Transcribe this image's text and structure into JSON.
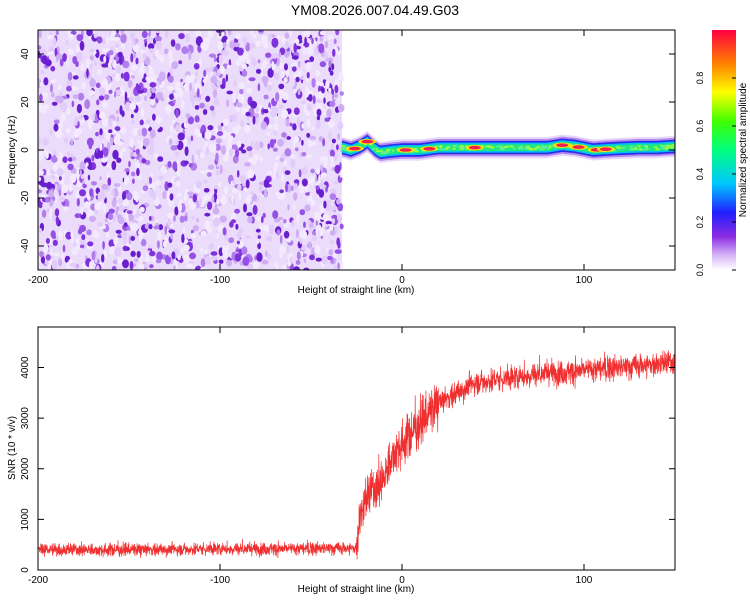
{
  "title": "YM08.2026.007.04.49.G03",
  "chart_data": [
    {
      "type": "heatmap",
      "xlabel": "Height of straight line (km)",
      "ylabel": "Frequency (Hz)",
      "xlim": [
        -200,
        150
      ],
      "ylim": [
        -50,
        50
      ],
      "xticks": [
        -200,
        -100,
        0,
        100
      ],
      "yticks": [
        -40,
        -20,
        0,
        20,
        40
      ],
      "noise_region_x": [
        -200,
        -33
      ],
      "signal_band": {
        "x_start": -33,
        "center_hz": [
          [
            -33,
            1.0
          ],
          [
            -28,
            0.0
          ],
          [
            -23,
            1.5
          ],
          [
            -19,
            3.5
          ],
          [
            -15,
            0.5
          ],
          [
            -12,
            -1.0
          ],
          [
            -7,
            -0.5
          ],
          [
            0,
            0.0
          ],
          [
            10,
            0.0
          ],
          [
            20,
            1.0
          ],
          [
            40,
            1.0
          ],
          [
            60,
            1.0
          ],
          [
            80,
            1.0
          ],
          [
            88,
            2.0
          ],
          [
            95,
            1.5
          ],
          [
            105,
            0.0
          ],
          [
            115,
            0.5
          ],
          [
            130,
            1.0
          ],
          [
            140,
            1.0
          ],
          [
            150,
            1.5
          ]
        ],
        "hot_spots_x": [
          -26,
          -19,
          2,
          15,
          40,
          88,
          97,
          107,
          112
        ]
      },
      "colorbar": {
        "label": "Normalized spectral amplitude",
        "range": [
          0,
          1
        ],
        "ticks": [
          0.0,
          0.2,
          0.4,
          0.6,
          0.8
        ]
      }
    },
    {
      "type": "line",
      "xlabel": "Height of straight line (km)",
      "ylabel": "SNR (10 * v/v)",
      "xlim": [
        -200,
        150
      ],
      "ylim": [
        0,
        4800
      ],
      "xticks": [
        -200,
        -100,
        0,
        100
      ],
      "yticks": [
        0,
        1000,
        2000,
        3000,
        4000
      ],
      "color": "#f03030",
      "trend": [
        [
          -200,
          400
        ],
        [
          -150,
          400
        ],
        [
          -100,
          420
        ],
        [
          -60,
          420
        ],
        [
          -25,
          430
        ],
        [
          -23,
          1100
        ],
        [
          -18,
          1500
        ],
        [
          -10,
          1800
        ],
        [
          -5,
          2300
        ],
        [
          0,
          2500
        ],
        [
          5,
          2700
        ],
        [
          10,
          2900
        ],
        [
          15,
          3100
        ],
        [
          20,
          3300
        ],
        [
          30,
          3500
        ],
        [
          40,
          3700
        ],
        [
          50,
          3750
        ],
        [
          60,
          3800
        ],
        [
          70,
          3850
        ],
        [
          80,
          3900
        ],
        [
          90,
          3900
        ],
        [
          100,
          3950
        ],
        [
          120,
          4000
        ],
        [
          150,
          4100
        ]
      ]
    }
  ]
}
